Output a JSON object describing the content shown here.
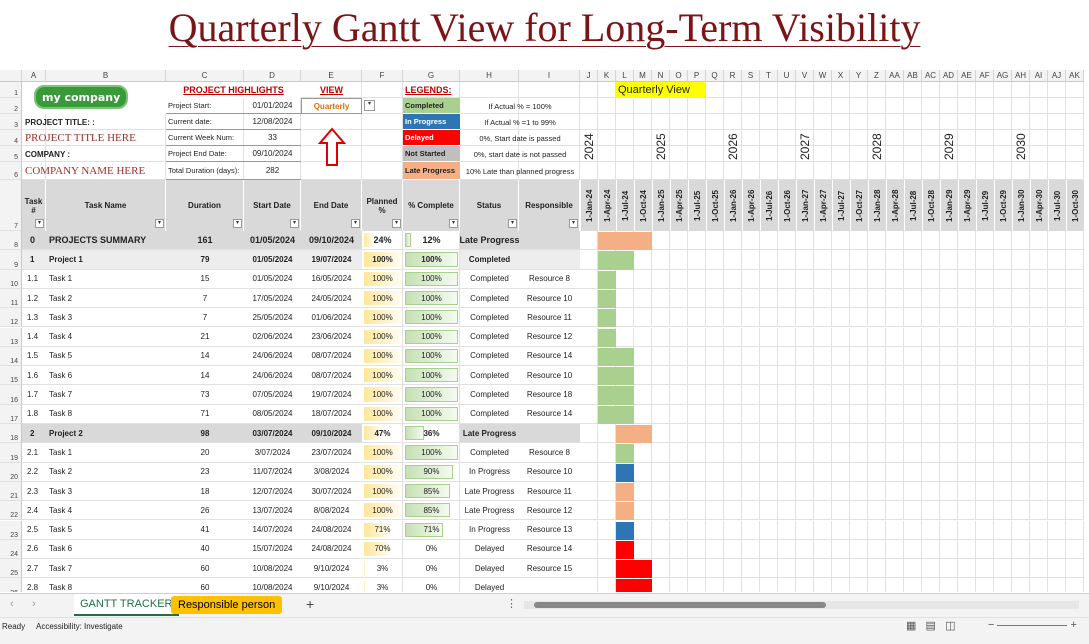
{
  "title": "Quarterly Gantt View for Long-Term Visibility",
  "column_letters": [
    "A",
    "B",
    "C",
    "D",
    "E",
    "F",
    "G",
    "H",
    "I",
    "J",
    "K",
    "L",
    "M",
    "N",
    "O",
    "P",
    "Q",
    "R",
    "S",
    "T",
    "U",
    "V",
    "W",
    "X",
    "Y",
    "Z",
    "AA",
    "AB",
    "AC",
    "AD",
    "AE",
    "AF",
    "AG",
    "AH",
    "AI",
    "AJ",
    "AK"
  ],
  "row_numbers": [
    "1",
    "2",
    "3",
    "4",
    "5",
    "6",
    "7",
    "8",
    "9",
    "10",
    "11",
    "12",
    "13",
    "14",
    "15",
    "16",
    "17",
    "18",
    "19",
    "20",
    "21",
    "22",
    "23",
    "24",
    "25",
    "26"
  ],
  "logo": "my company",
  "project": {
    "title_label": "PROJECT TITLE: :",
    "title_value": "PROJECT TITLE HERE",
    "company_label": "COMPANY :",
    "company_value": "COMPANY NAME HERE"
  },
  "highlights": {
    "heading": "PROJECT HIGHLIGHTS",
    "items": [
      [
        "Project Start:",
        "01/01/2024"
      ],
      [
        "Current date:",
        "12/08/2024"
      ],
      [
        "Current Week Num:",
        "33"
      ],
      [
        "Project End Date:",
        "09/10/2024"
      ],
      [
        "Total Duration (days):",
        "282"
      ]
    ]
  },
  "view": {
    "heading": "VIEW",
    "value": "Quarterly"
  },
  "legend": {
    "heading": "LEGENDS:",
    "items": [
      {
        "label": "Completed",
        "description": "If Actual % = 100%",
        "color": "#a9d08e",
        "text_color": "#1f1f1f"
      },
      {
        "label": "In Progress",
        "description": "If Actual % =1 to 99%",
        "color": "#2e75b6",
        "text_color": "#ffffff"
      },
      {
        "label": "Delayed",
        "description": "0%, Start date is passed",
        "color": "#ff0000",
        "text_color": "#ffffff"
      },
      {
        "label": "Not Started",
        "description": "0%, start date is not passed",
        "color": "#bfbfbf",
        "text_color": "#1f1f1f"
      },
      {
        "label": "Late Progress",
        "description": "10% Late than planned progress",
        "color": "#f4b084",
        "text_color": "#1f1f1f"
      }
    ]
  },
  "gantt": {
    "heading": "Quarterly View",
    "years": [
      "2024",
      "2025",
      "2026",
      "2027",
      "2028",
      "2029",
      "2030"
    ],
    "quarters": [
      "1-Jan-24",
      "1-Apr-24",
      "1-Jul-24",
      "1-Oct-24",
      "1-Jan-25",
      "1-Apr-25",
      "1-Jul-25",
      "1-Oct-25",
      "1-Jan-26",
      "1-Apr-26",
      "1-Jul-26",
      "1-Oct-26",
      "1-Jan-27",
      "1-Apr-27",
      "1-Jul-27",
      "1-Oct-27",
      "1-Jan-28",
      "1-Apr-28",
      "1-Jul-28",
      "1-Oct-28",
      "1-Jan-29",
      "1-Apr-29",
      "1-Jul-29",
      "1-Oct-29",
      "1-Jan-30",
      "1-Apr-30",
      "1-Jul-30",
      "1-Oct-30"
    ]
  },
  "table": {
    "headers": [
      "Task #",
      "Task Name",
      "Duration",
      "Start Date",
      "End Date",
      "Planned %",
      "% Complete",
      "Status",
      "Responsible"
    ],
    "rows": [
      [
        "0",
        "PROJECTS SUMMARY",
        "161",
        "01/05/2024",
        "09/10/2024",
        "24%",
        "12%",
        "Late Progress",
        null
      ],
      [
        "1",
        "Project 1",
        "79",
        "01/05/2024",
        "19/07/2024",
        "100%",
        "100%",
        "Completed",
        null
      ],
      [
        "1.1",
        "Task 1",
        "15",
        "01/05/2024",
        "16/05/2024",
        "100%",
        "100%",
        "Completed",
        "Resource 8"
      ],
      [
        "1.2",
        "Task 2",
        "7",
        "17/05/2024",
        "24/05/2024",
        "100%",
        "100%",
        "Completed",
        "Resource 10"
      ],
      [
        "1.3",
        "Task 3",
        "7",
        "25/05/2024",
        "01/06/2024",
        "100%",
        "100%",
        "Completed",
        "Resource 11"
      ],
      [
        "1.4",
        "Task 4",
        "21",
        "02/06/2024",
        "23/06/2024",
        "100%",
        "100%",
        "Completed",
        "Resource 12"
      ],
      [
        "1.5",
        "Task 5",
        "14",
        "24/06/2024",
        "08/07/2024",
        "100%",
        "100%",
        "Completed",
        "Resource 14"
      ],
      [
        "1.6",
        "Task 6",
        "14",
        "24/06/2024",
        "08/07/2024",
        "100%",
        "100%",
        "Completed",
        "Resource 10"
      ],
      [
        "1.7",
        "Task 7",
        "73",
        "07/05/2024",
        "19/07/2024",
        "100%",
        "100%",
        "Completed",
        "Resource 18"
      ],
      [
        "1.8",
        "Task 8",
        "71",
        "08/05/2024",
        "18/07/2024",
        "100%",
        "100%",
        "Completed",
        "Resource 14"
      ],
      [
        "2",
        "Project 2",
        "98",
        "03/07/2024",
        "09/10/2024",
        "47%",
        "36%",
        "Late Progress",
        null
      ],
      [
        "2.1",
        "Task 1",
        "20",
        "3/07/2024",
        "23/07/2024",
        "100%",
        "100%",
        "Completed",
        "Resource 8"
      ],
      [
        "2.2",
        "Task 2",
        "23",
        "11/07/2024",
        "3/08/2024",
        "100%",
        "90%",
        "In Progress",
        "Resource 10"
      ],
      [
        "2.3",
        "Task 3",
        "18",
        "12/07/2024",
        "30/07/2024",
        "100%",
        "85%",
        "Late Progress",
        "Resource 11"
      ],
      [
        "2.4",
        "Task 4",
        "26",
        "13/07/2024",
        "8/08/2024",
        "100%",
        "85%",
        "Late Progress",
        "Resource 12"
      ],
      [
        "2.5",
        "Task 5",
        "41",
        "14/07/2024",
        "24/08/2024",
        "71%",
        "71%",
        "In Progress",
        "Resource 13"
      ],
      [
        "2.6",
        "Task 6",
        "40",
        "15/07/2024",
        "24/08/2024",
        "70%",
        "0%",
        "Delayed",
        "Resource 14"
      ],
      [
        "2.7",
        "Task 7",
        "60",
        "10/08/2024",
        "9/10/2024",
        "3%",
        "0%",
        "Delayed",
        "Resource 15"
      ],
      [
        "2.8",
        "Task 8",
        "60",
        "10/08/2024",
        "9/10/2024",
        "3%",
        "0%",
        "Delayed",
        null
      ]
    ]
  },
  "sheet_tabs": [
    "GANTT TRACKER",
    "Responsible person"
  ],
  "status_bar": {
    "ready": "Ready",
    "accessibility": "Accessibility: Investigate"
  }
}
